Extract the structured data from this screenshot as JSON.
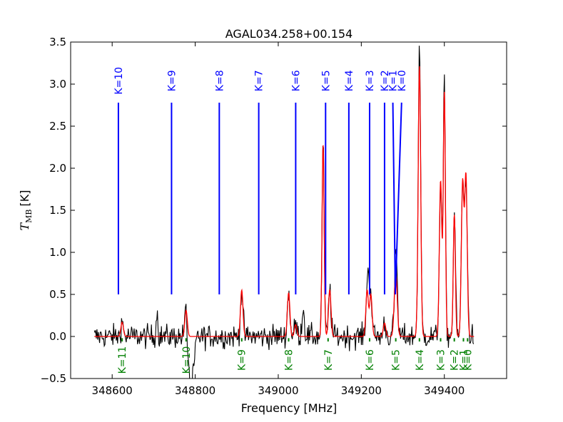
{
  "chart_data": {
    "type": "line",
    "title": "AGAL034.258+00.154",
    "xlabel": "Frequency [MHz]",
    "ylabel_main": "T",
    "ylabel_sub": "MB",
    "ylabel_unit": "[K]",
    "xlim": [
      348500,
      349550
    ],
    "ylim": [
      -0.5,
      3.5
    ],
    "xticks": [
      348600,
      348800,
      349000,
      349200,
      349400
    ],
    "xtick_labels": [
      "348600",
      "348800",
      "349000",
      "349200",
      "349400"
    ],
    "yticks": [
      -0.5,
      0.0,
      0.5,
      1.0,
      1.5,
      2.0,
      2.5,
      3.0,
      3.5
    ],
    "ytick_labels": [
      "−0.5",
      "0.0",
      "0.5",
      "1.0",
      "1.5",
      "2.0",
      "2.5",
      "3.0",
      "3.5"
    ],
    "colors": {
      "observed": "#000000",
      "model": "#ff0000",
      "ladder_upper": "#0000ff",
      "ladder_lower": "#008000"
    },
    "upper_ladder": {
      "label_y": 3.04,
      "line_top": 2.78,
      "line_bottom": 0.5,
      "lines": [
        {
          "label": "K=10",
          "x": 348615
        },
        {
          "label": "K=9",
          "x": 348743
        },
        {
          "label": "K=8",
          "x": 348858
        },
        {
          "label": "K=7",
          "x": 348953
        },
        {
          "label": "K=6",
          "x": 349042
        },
        {
          "label": "K=5",
          "x": 349114
        },
        {
          "label": "K=4",
          "x": 349170
        },
        {
          "label": "K=3",
          "x": 349220
        },
        {
          "label": "K=2",
          "x": 349256
        },
        {
          "label": "K=1",
          "x": 349276,
          "x_bottom": 349282
        },
        {
          "label": "K=0",
          "x": 349297,
          "x_bottom": 349282
        }
      ]
    },
    "lower_ladder": {
      "tick_top": -0.02,
      "tick_bottom": -0.06,
      "label_y": -0.28,
      "lines": [
        {
          "label": "K=11",
          "x": 348624
        },
        {
          "label": "K=10",
          "x": 348778
        },
        {
          "label": "K=9",
          "x": 348912
        },
        {
          "label": "K=8",
          "x": 349025
        },
        {
          "label": "K=7",
          "x": 349120
        },
        {
          "label": "K=6",
          "x": 349220
        },
        {
          "label": "K=5",
          "x": 349283
        },
        {
          "label": "K=4",
          "x": 349340
        },
        {
          "label": "K=3",
          "x": 349391
        },
        {
          "label": "K=2",
          "x": 349424
        },
        {
          "label": "K=1",
          "x": 349446
        },
        {
          "label": "K=0",
          "x": 349456
        }
      ]
    },
    "series": [
      {
        "name": "model",
        "baseline": 0.0,
        "x_range": [
          348557,
          349472
        ],
        "components": [
          {
            "center": 348624,
            "amp": 0.17,
            "width": 3
          },
          {
            "center": 348778,
            "amp": 0.31,
            "width": 3
          },
          {
            "center": 348912,
            "amp": 0.55,
            "width": 3
          },
          {
            "center": 349025,
            "amp": 0.52,
            "width": 3
          },
          {
            "center": 349042,
            "amp": 0.14,
            "width": 3
          },
          {
            "center": 349108,
            "amp": 2.28,
            "width": 2.5
          },
          {
            "center": 349124,
            "amp": 0.56,
            "width": 3
          },
          {
            "center": 349214,
            "amp": 0.55,
            "width": 3
          },
          {
            "center": 349223,
            "amp": 0.5,
            "width": 3
          },
          {
            "center": 349256,
            "amp": 0.16,
            "width": 3
          },
          {
            "center": 349283,
            "amp": 0.78,
            "width": 3.5
          },
          {
            "center": 349340,
            "amp": 3.22,
            "width": 3
          },
          {
            "center": 349391,
            "amp": 1.85,
            "width": 3
          },
          {
            "center": 349400,
            "amp": 2.9,
            "width": 2.5
          },
          {
            "center": 349424,
            "amp": 1.45,
            "width": 2.5
          },
          {
            "center": 349444,
            "amp": 1.82,
            "width": 3
          },
          {
            "center": 349452,
            "amp": 1.9,
            "width": 3
          }
        ]
      },
      {
        "name": "observed",
        "x_range": [
          348557,
          349472
        ],
        "extra_features": [
          {
            "center": 348708,
            "amp": 0.3,
            "width": 2
          },
          {
            "center": 349060,
            "amp": 0.33,
            "width": 3
          },
          {
            "center": 349218,
            "amp": 0.45,
            "width": 2
          },
          {
            "center": 349285,
            "amp": 0.3,
            "width": 2
          },
          {
            "center": 349340,
            "amp": 0.25,
            "width": 2
          },
          {
            "center": 349400,
            "amp": 0.15,
            "width": 2
          },
          {
            "center": 349427,
            "amp": 0.15,
            "width": 2
          },
          {
            "center": 349458,
            "amp": 0.08,
            "width": 2
          }
        ],
        "dips": [
          {
            "center": 348790,
            "amp": 0.55,
            "width": 2.5
          },
          {
            "center": 348800,
            "amp": 0.1,
            "width": 3
          }
        ]
      }
    ]
  }
}
